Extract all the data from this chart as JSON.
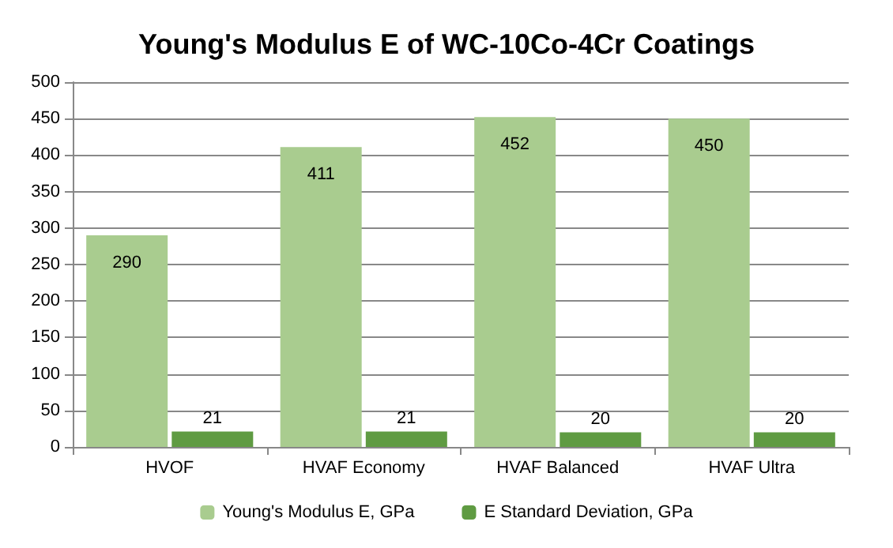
{
  "chart_data": {
    "type": "bar",
    "title": "Young's Modulus E of WC-10Co-4Cr Coatings",
    "categories": [
      "HVOF",
      "HVAF Economy",
      "HVAF Balanced",
      "HVAF Ultra"
    ],
    "series": [
      {
        "name": "Young's Modulus E, GPa",
        "color": "#a9cc8f",
        "values": [
          290,
          411,
          452,
          450
        ]
      },
      {
        "name": "E Standard Deviation, GPa",
        "color": "#5f9b42",
        "values": [
          21,
          21,
          20,
          20
        ]
      }
    ],
    "ylim": [
      0,
      500
    ],
    "yticks": [
      0,
      50,
      100,
      150,
      200,
      250,
      300,
      350,
      400,
      450,
      500
    ],
    "grid": "y",
    "legend": "bottom",
    "data_labels": true
  }
}
